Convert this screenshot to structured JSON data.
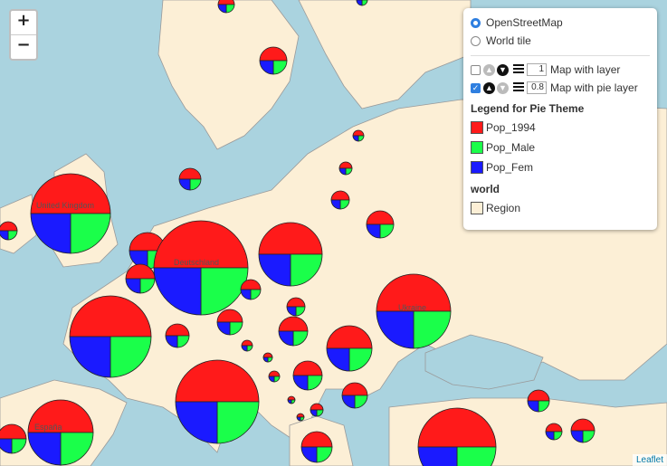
{
  "basemaps": [
    {
      "label": "OpenStreetMap",
      "selected": true
    },
    {
      "label": "World tile",
      "selected": false
    }
  ],
  "overlays": [
    {
      "label": "Map with layer",
      "checked": false,
      "opacity": "1"
    },
    {
      "label": "Map with pie layer",
      "checked": true,
      "opacity": "0.8"
    }
  ],
  "legend": {
    "title": "Legend for Pie Theme",
    "items": [
      {
        "label": "Pop_1994",
        "color": "#ff1a1a"
      },
      {
        "label": "Pop_Male",
        "color": "#1aff4a"
      },
      {
        "label": "Pop_Fem",
        "color": "#1a1aff"
      }
    ]
  },
  "world": {
    "title": "world",
    "items": [
      {
        "label": "Region",
        "color": "#fcefd6"
      }
    ]
  },
  "zoom": {
    "in": "+",
    "out": "−"
  },
  "attribution": "Leaflet",
  "place_labels": [
    "United Kingdom",
    "Deutschland",
    "España",
    "Ukraine"
  ],
  "pie_shares": [
    0.5,
    0.25,
    0.25
  ]
}
